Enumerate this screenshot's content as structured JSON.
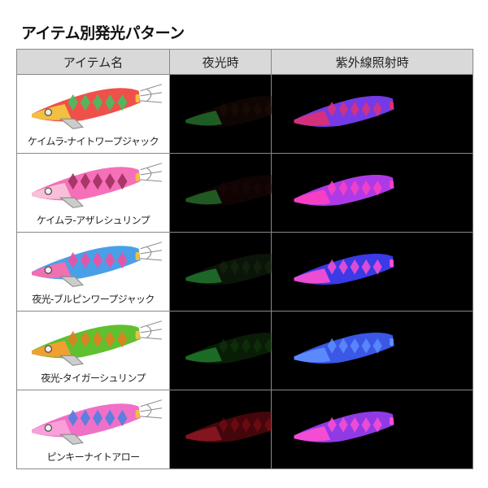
{
  "title": "アイテム別発光パターン",
  "headers": [
    "アイテム名",
    "夜光時",
    "紫外線照射時"
  ],
  "rows": [
    {
      "name": "ケイムラ-ナイトワープジャック",
      "body": "#f0504a",
      "head": "#f2c040",
      "pattern": "#44c060",
      "night": "#2a1208",
      "night_glow": "#40ff60",
      "uv": "#8040ff",
      "uv_top": "#e03070"
    },
    {
      "name": "ケイムラ-アザレシュリンプ",
      "body": "#f570b8",
      "head": "#f8c0d8",
      "pattern": "#a03060",
      "night": "#2a0808",
      "night_glow": "#40ff60",
      "uv": "#c040ff",
      "uv_top": "#ff40c0"
    },
    {
      "name": "夜光-ブルピンワープジャック",
      "body": "#4aa0e8",
      "head": "#f070b0",
      "pattern": "#f050a0",
      "night": "#203818",
      "night_glow": "#40ff60",
      "uv": "#4040ff",
      "uv_top": "#ff50d0"
    },
    {
      "name": "夜光-タイガーシュリンプ",
      "body": "#60c030",
      "head": "#f0a030",
      "pattern": "#e08020",
      "night": "#1a5010",
      "night_glow": "#40ff60",
      "uv": "#4060ff",
      "uv_top": "#6090ff"
    },
    {
      "name": "ピンキーナイトアロー",
      "body": "#f070c8",
      "head": "#f8a0d8",
      "pattern": "#5080e0",
      "night": "#c01020",
      "night_glow": "#ff3040",
      "uv": "#a040ff",
      "uv_top": "#ff50d0"
    }
  ]
}
